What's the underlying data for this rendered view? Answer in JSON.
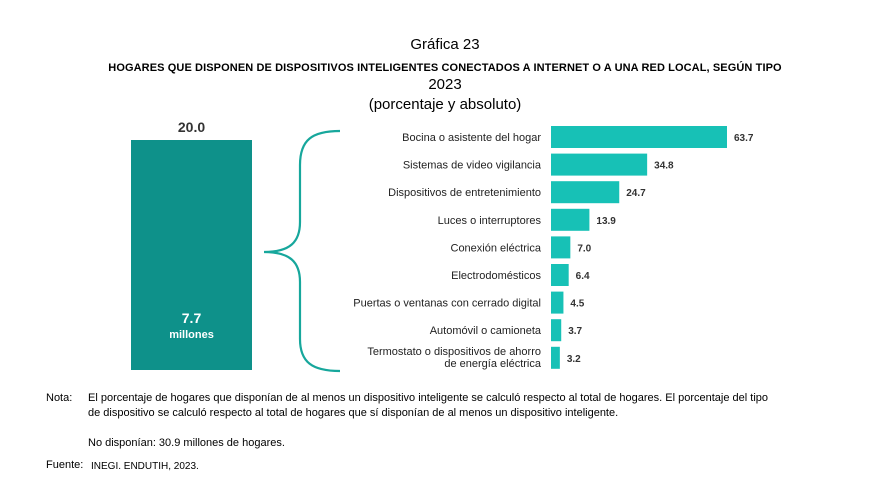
{
  "header": {
    "chart_number": "Gráfica 23",
    "title": "HOGARES QUE DISPONEN DE DISPOSITIVOS INTELIGENTES CONECTADOS A INTERNET O A UNA RED LOCAL, SEGÚN TIPO",
    "year": "2023",
    "subtitle": "(porcentaje y absoluto)"
  },
  "colors": {
    "big_bar": "#0e918a",
    "bars": "#17c1b6",
    "brace": "#17a79c"
  },
  "chart_data": [
    {
      "type": "bar",
      "title": "",
      "value_label": "20.0",
      "value": 20.0,
      "inner_value": "7.7",
      "inner_unit": "millones"
    },
    {
      "type": "bar",
      "orientation": "horizontal",
      "categories": [
        "Bocina o asistente del hogar",
        "Sistemas de video vigilancia",
        "Dispositivos de entretenimiento",
        "Luces o interruptores",
        "Conexión eléctrica",
        "Electrodomésticos",
        "Puertas o ventanas con cerrado digital",
        "Automóvil o camioneta",
        "Termostato o dispositivos de ahorro de energía eléctrica"
      ],
      "values": [
        63.7,
        34.8,
        24.7,
        13.9,
        7.0,
        6.4,
        4.5,
        3.7,
        3.2
      ],
      "value_labels": [
        "63.7",
        "34.8",
        "24.7",
        "13.9",
        "7.0",
        "6.4",
        "4.5",
        "3.7",
        "3.2"
      ],
      "xlim": [
        0,
        63.7
      ],
      "grid": false,
      "legend": "none"
    }
  ],
  "footer": {
    "note_label": "Nota:",
    "note_text": "El porcentaje de hogares que disponían de al menos un dispositivo inteligente se calculó respecto al total de hogares. El porcentaje del tipo de dispositivo se calculó respecto al total de hogares que sí disponían de al menos un dispositivo inteligente.",
    "note_extra": "No disponían: 30.9 millones de hogares.",
    "source_label": "Fuente:",
    "source_text": "INEGI. ENDUTIH, 2023."
  }
}
